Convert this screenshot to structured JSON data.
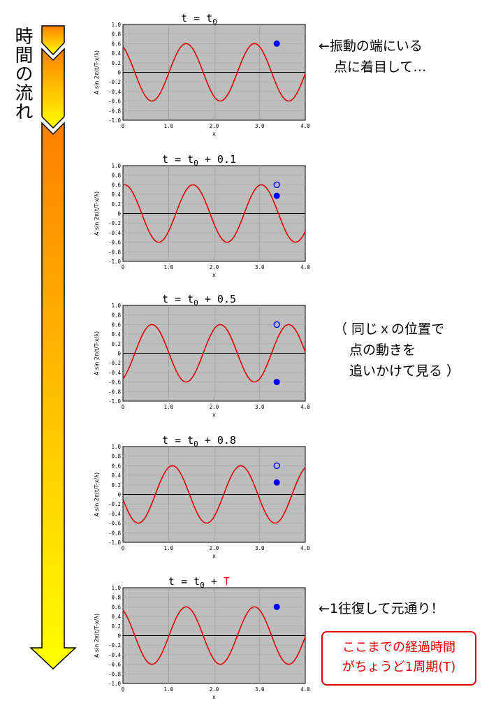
{
  "time_axis_label": "時間の流れ",
  "colors": {
    "wave": "#e00000",
    "point": "#0000ee",
    "plot_bg": "#bdbdbd",
    "arrow_top": "#ff7f00",
    "arrow_bottom": "#ffff00",
    "box": "#e00000"
  },
  "panels": [
    {
      "title_prefix": "t = t",
      "title_sub": "0",
      "title_suffix": "",
      "title_highlight": "",
      "phase": 0.0,
      "ghost": false
    },
    {
      "title_prefix": "t = t",
      "title_sub": "0",
      "title_suffix": " + 0.1",
      "title_highlight": "",
      "phase": 0.1,
      "ghost": true
    },
    {
      "title_prefix": "t = t",
      "title_sub": "0",
      "title_suffix": " + 0.5",
      "title_highlight": "",
      "phase": 0.5,
      "ghost": true
    },
    {
      "title_prefix": "t = t",
      "title_sub": "0",
      "title_suffix": " + 0.8",
      "title_highlight": "",
      "phase": 0.8,
      "ghost": true
    },
    {
      "title_prefix": "t = t",
      "title_sub": "0",
      "title_suffix": " + ",
      "title_highlight": "T",
      "phase": 1.0,
      "ghost": false
    }
  ],
  "chart_data": {
    "type": "line",
    "function": "A sin 2π(t/T - x/λ)",
    "amplitude": 0.6,
    "wavelength": 1.5,
    "period": 1.0,
    "tracked_x": 3.375,
    "xlim": [
      0,
      4.0
    ],
    "ylim": [
      -1.0,
      1.0
    ],
    "xlabel": "x",
    "ylabel": "A sin 2π(t/T-x/λ)",
    "x_ticks": [
      "0",
      "1.0",
      "2.0",
      "3.0",
      "4.0"
    ],
    "y_ticks": [
      "1.0",
      "0.8",
      "0.6",
      "0.4",
      "0.2",
      "0",
      "-0.2",
      "-0.4",
      "-0.6",
      "-0.8",
      "-1.0"
    ],
    "grid": true,
    "point_values": [
      0.6,
      0.37,
      -0.6,
      0.25,
      0.6
    ]
  },
  "notes": {
    "n1_line1": "←振動の端にいる",
    "n1_line2": "点に着目して…",
    "n2_line1": "（ 同じｘの位置で",
    "n2_line2": "点の動きを",
    "n2_line3": "追いかけて見る ）",
    "n3": "←1往復して元通り！",
    "box_line1": "ここまでの経過時間",
    "box_line2": "がちょうど1周期(T)"
  }
}
